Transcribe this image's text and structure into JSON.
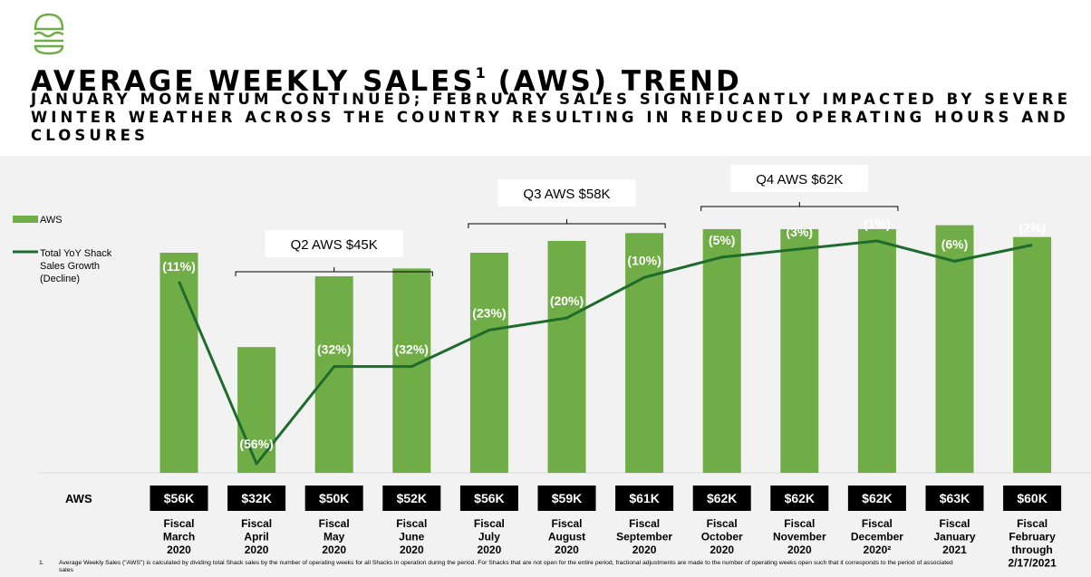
{
  "header": {
    "title": "AVERAGE WEEKLY SALES",
    "title_sup": "1",
    "title_suffix": " (AWS) TREND",
    "subtitle": "JANUARY MOMENTUM CONTINUED; FEBRUARY SALES SIGNIFICANTLY IMPACTED BY SEVERE WINTER WEATHER ACROSS THE COUNTRY RESULTING IN REDUCED OPERATING HOURS AND CLOSURES",
    "logo_icon": "burger-icon"
  },
  "colors": {
    "bar": "#70ad47",
    "line": "#1e6b2e",
    "background": "#f2f2f2",
    "label_box": "#000000"
  },
  "chart_data": {
    "type": "bar",
    "categories": [
      [
        "Fiscal",
        "March",
        "2020"
      ],
      [
        "Fiscal",
        "April",
        "2020"
      ],
      [
        "Fiscal",
        "May",
        "2020"
      ],
      [
        "Fiscal",
        "June",
        "2020"
      ],
      [
        "Fiscal",
        "July",
        "2020"
      ],
      [
        "Fiscal",
        "August",
        "2020"
      ],
      [
        "Fiscal",
        "September",
        "2020"
      ],
      [
        "Fiscal",
        "October",
        "2020"
      ],
      [
        "Fiscal",
        "November",
        "2020"
      ],
      [
        "Fiscal",
        "December",
        "2020²"
      ],
      [
        "Fiscal",
        "January",
        "2021"
      ],
      [
        "Fiscal",
        "February",
        "through",
        "2/17/2021"
      ]
    ],
    "series": [
      {
        "name": "AWS",
        "type": "bar",
        "values": [
          56,
          32,
          50,
          52,
          56,
          59,
          61,
          62,
          62,
          62,
          63,
          60
        ],
        "labels": [
          "$56K",
          "$32K",
          "$50K",
          "$52K",
          "$56K",
          "$59K",
          "$61K",
          "$62K",
          "$62K",
          "$62K",
          "$63K",
          "$60K"
        ]
      },
      {
        "name": "Total YoY Shack Sales Growth (Decline)",
        "type": "line",
        "values": [
          -11,
          -56,
          -32,
          -32,
          -23,
          -20,
          -10,
          -5,
          -3,
          -1,
          -6,
          -2
        ],
        "labels": [
          "(11%)",
          "(56%)",
          "(32%)",
          "(32%)",
          "(23%)",
          "(20%)",
          "(10%)",
          "(5%)",
          "(3%)",
          "(1%)",
          "(6%)",
          "(2%)"
        ]
      }
    ],
    "legend": [
      "AWS",
      "Total YoY Shack",
      "Sales Growth",
      "(Decline)"
    ],
    "legend_position": "top-left",
    "row_label": "AWS",
    "annotations": [
      {
        "text": "Q2 AWS $45K",
        "from": 1,
        "to": 3
      },
      {
        "text": "Q3 AWS $58K",
        "from": 4,
        "to": 6
      },
      {
        "text": "Q4 AWS $62K",
        "from": 7,
        "to": 9
      }
    ],
    "ylim_bar": [
      0,
      65
    ],
    "ylim_line": [
      -60,
      0
    ]
  },
  "footnote": {
    "number": "1.",
    "text": "Average Weekly Sales (\"AWS\") is calculated by dividing total Shack sales by the number of operating weeks for all Shacks in operation during the period. For Shacks that are not open for the entire period, fractional adjustments are made to the number of operating weeks open such that it corresponds to the period of associated sales"
  }
}
